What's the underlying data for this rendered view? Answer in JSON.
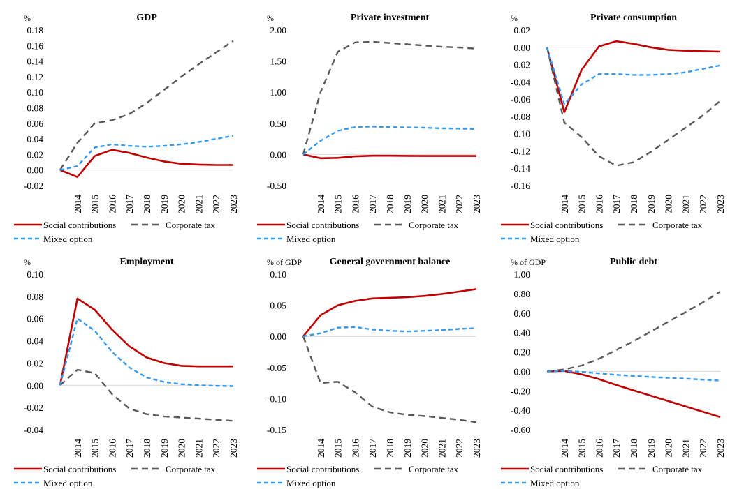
{
  "colors": {
    "social": "#c00000",
    "corporate": "#595959",
    "mixed": "#3399ee"
  },
  "chart_data": [
    {
      "type": "line",
      "title": "GDP",
      "unit": "%",
      "x": [
        "2013",
        "2014",
        "2015",
        "2016",
        "2017",
        "2018",
        "2019",
        "2020",
        "2021",
        "2022",
        "2023"
      ],
      "x_tick_labels": [
        "2014",
        "2015",
        "2016",
        "2017",
        "2018",
        "2019",
        "2020",
        "2021",
        "2022",
        "2023"
      ],
      "ylim": [
        -0.02,
        0.18
      ],
      "y_ticks": [
        "-0.02",
        "0.00",
        "0.02",
        "0.04",
        "0.06",
        "0.08",
        "0.10",
        "0.12",
        "0.14",
        "0.16",
        "0.18"
      ],
      "legend_position": "bottom",
      "series": [
        {
          "name": "Social contributions",
          "key": "social",
          "values": [
            0.0,
            -0.009,
            0.018,
            0.026,
            0.022,
            0.016,
            0.011,
            0.008,
            0.007,
            0.0065,
            0.0065
          ]
        },
        {
          "name": "Corporate tax",
          "key": "corporate",
          "values": [
            0.0,
            0.035,
            0.06,
            0.064,
            0.072,
            0.086,
            0.103,
            0.12,
            0.136,
            0.151,
            0.166
          ]
        },
        {
          "name": "Mixed option",
          "key": "mixed",
          "values": [
            0.0,
            0.005,
            0.029,
            0.033,
            0.031,
            0.03,
            0.031,
            0.033,
            0.036,
            0.04,
            0.044
          ]
        }
      ]
    },
    {
      "type": "line",
      "title": "Private investment",
      "unit": "%",
      "x": [
        "2013",
        "2014",
        "2015",
        "2016",
        "2017",
        "2018",
        "2019",
        "2020",
        "2021",
        "2022",
        "2023"
      ],
      "x_tick_labels": [
        "2014",
        "2015",
        "2016",
        "2017",
        "2018",
        "2019",
        "2020",
        "2021",
        "2022",
        "2023"
      ],
      "ylim": [
        -0.5,
        2.0
      ],
      "y_ticks": [
        "-0.50",
        "0.00",
        "0.50",
        "1.00",
        "1.50",
        "2.00"
      ],
      "legend_position": "bottom",
      "series": [
        {
          "name": "Social contributions",
          "key": "social",
          "values": [
            0.0,
            -0.06,
            -0.055,
            -0.03,
            -0.02,
            -0.02,
            -0.022,
            -0.025,
            -0.025,
            -0.025,
            -0.025
          ]
        },
        {
          "name": "Corporate tax",
          "key": "corporate",
          "values": [
            0.0,
            1.0,
            1.65,
            1.8,
            1.81,
            1.79,
            1.77,
            1.75,
            1.73,
            1.72,
            1.7
          ]
        },
        {
          "name": "Mixed option",
          "key": "mixed",
          "values": [
            0.0,
            0.22,
            0.38,
            0.44,
            0.45,
            0.44,
            0.435,
            0.43,
            0.42,
            0.415,
            0.41
          ]
        }
      ]
    },
    {
      "type": "line",
      "title": "Private consumption",
      "unit": "%",
      "x": [
        "2013",
        "2014",
        "2015",
        "2016",
        "2017",
        "2018",
        "2019",
        "2020",
        "2021",
        "2022",
        "2023"
      ],
      "x_tick_labels": [
        "2014",
        "2015",
        "2016",
        "2017",
        "2018",
        "2019",
        "2020",
        "2021",
        "2022",
        "2023"
      ],
      "ylim": [
        -0.16,
        0.02
      ],
      "y_ticks": [
        "-0.16",
        "-0.14",
        "-0.12",
        "-0.10",
        "-0.08",
        "-0.06",
        "-0.04",
        "-0.02",
        "0.00",
        "0.02"
      ],
      "legend_position": "bottom",
      "series": [
        {
          "name": "Social contributions",
          "key": "social",
          "values": [
            0.0,
            -0.075,
            -0.026,
            0.001,
            0.007,
            0.004,
            0.0,
            -0.003,
            -0.004,
            -0.0045,
            -0.005
          ]
        },
        {
          "name": "Corporate tax",
          "key": "corporate",
          "values": [
            0.0,
            -0.087,
            -0.104,
            -0.126,
            -0.137,
            -0.133,
            -0.121,
            -0.107,
            -0.093,
            -0.079,
            -0.062
          ]
        },
        {
          "name": "Mixed option",
          "key": "mixed",
          "values": [
            0.0,
            -0.066,
            -0.043,
            -0.031,
            -0.031,
            -0.032,
            -0.032,
            -0.031,
            -0.029,
            -0.025,
            -0.021
          ]
        }
      ]
    },
    {
      "type": "line",
      "title": "Employment",
      "unit": "%",
      "x": [
        "2013",
        "2014",
        "2015",
        "2016",
        "2017",
        "2018",
        "2019",
        "2020",
        "2021",
        "2022",
        "2023"
      ],
      "x_tick_labels": [
        "2014",
        "2015",
        "2016",
        "2017",
        "2018",
        "2019",
        "2020",
        "2021",
        "2022",
        "2023"
      ],
      "ylim": [
        -0.04,
        0.1
      ],
      "y_ticks": [
        "-0.04",
        "-0.02",
        "0.00",
        "0.02",
        "0.04",
        "0.06",
        "0.08",
        "0.10"
      ],
      "legend_position": "bottom",
      "series": [
        {
          "name": "Social contributions",
          "key": "social",
          "values": [
            0.0,
            0.078,
            0.068,
            0.05,
            0.035,
            0.025,
            0.02,
            0.0175,
            0.017,
            0.017,
            0.017
          ]
        },
        {
          "name": "Corporate tax",
          "key": "corporate",
          "values": [
            0.0,
            0.014,
            0.011,
            -0.008,
            -0.021,
            -0.026,
            -0.028,
            -0.029,
            -0.03,
            -0.031,
            -0.032
          ]
        },
        {
          "name": "Mixed option",
          "key": "mixed",
          "values": [
            0.0,
            0.06,
            0.049,
            0.03,
            0.016,
            0.007,
            0.003,
            0.001,
            0.0,
            -0.0005,
            -0.0008
          ]
        }
      ]
    },
    {
      "type": "line",
      "title": "General government balance",
      "unit": "% of GDP",
      "x": [
        "2013",
        "2014",
        "2015",
        "2016",
        "2017",
        "2018",
        "2019",
        "2020",
        "2021",
        "2022",
        "2023"
      ],
      "x_tick_labels": [
        "2014",
        "2015",
        "2016",
        "2017",
        "2018",
        "2019",
        "2020",
        "2021",
        "2022",
        "2023"
      ],
      "ylim": [
        -0.15,
        0.1
      ],
      "y_ticks": [
        "-0.15",
        "-0.10",
        "-0.05",
        "0.00",
        "0.05",
        "0.10"
      ],
      "legend_position": "bottom",
      "series": [
        {
          "name": "Social contributions",
          "key": "social",
          "values": [
            0.0,
            0.034,
            0.05,
            0.057,
            0.061,
            0.062,
            0.063,
            0.065,
            0.068,
            0.072,
            0.076
          ]
        },
        {
          "name": "Corporate tax",
          "key": "corporate",
          "values": [
            0.0,
            -0.075,
            -0.073,
            -0.09,
            -0.113,
            -0.122,
            -0.126,
            -0.128,
            -0.131,
            -0.134,
            -0.138
          ]
        },
        {
          "name": "Mixed option",
          "key": "mixed",
          "values": [
            0.0,
            0.005,
            0.014,
            0.015,
            0.011,
            0.009,
            0.008,
            0.009,
            0.01,
            0.012,
            0.013
          ]
        }
      ]
    },
    {
      "type": "line",
      "title": "Public debt",
      "unit": "% of GDP",
      "x": [
        "2013",
        "2014",
        "2015",
        "2016",
        "2017",
        "2018",
        "2019",
        "2020",
        "2021",
        "2022",
        "2023"
      ],
      "x_tick_labels": [
        "2014",
        "2015",
        "2016",
        "2017",
        "2018",
        "2019",
        "2020",
        "2021",
        "2022",
        "2023"
      ],
      "ylim": [
        -0.6,
        1.0
      ],
      "y_ticks": [
        "-0.60",
        "-0.40",
        "-0.20",
        "0.00",
        "0.20",
        "0.40",
        "0.60",
        "0.80",
        "1.00"
      ],
      "legend_position": "bottom",
      "series": [
        {
          "name": "Social contributions",
          "key": "social",
          "values": [
            0.0,
            0.005,
            -0.03,
            -0.08,
            -0.14,
            -0.195,
            -0.25,
            -0.305,
            -0.36,
            -0.415,
            -0.47
          ]
        },
        {
          "name": "Corporate tax",
          "key": "corporate",
          "values": [
            0.0,
            0.02,
            0.06,
            0.13,
            0.22,
            0.31,
            0.41,
            0.51,
            0.61,
            0.71,
            0.82
          ]
        },
        {
          "name": "Mixed option",
          "key": "mixed",
          "values": [
            0.0,
            0.005,
            -0.005,
            -0.02,
            -0.035,
            -0.047,
            -0.057,
            -0.066,
            -0.075,
            -0.085,
            -0.095
          ]
        }
      ]
    }
  ]
}
